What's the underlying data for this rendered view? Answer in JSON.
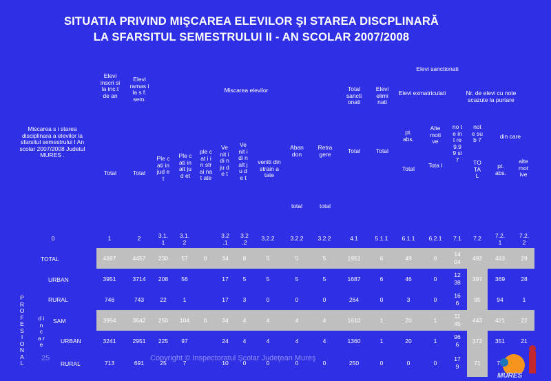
{
  "title_line1": "SITUATIA PRIVIND MIŞCAREA ELEVILOR ŞI STAREA DISCPLINARĂ",
  "title_line2": "LA SFARSITUL SEMESTRULUI II - AN SCOLAR 2007/2008",
  "headers": {
    "left_desc": "Miscarea s i starea disciplinara a elevilor la sfarsitul semestrului I An scolar 2007/2008 Judetul MURES .",
    "elevi_inscrisi": "Elevi inscri si la inc.t de an",
    "elevi_ramasi": "Elevi ramas i la s f. sem.",
    "miscarea": "Miscarea elevilor",
    "elevi_sanctionati": "Elevi sanctionati",
    "total_sanctionati": "Total sancti onati",
    "elevi_eliminati": "Elevi elimi nati",
    "elevi_exmatriculati": "Elevi exmatriculati",
    "nr_elevi_note": "Nr. de elevi cu note scazute la purtare",
    "total": "Total",
    "plecati_judet": "Ple cati in jud et",
    "plecati_alt_judet": "Ple cati in alt jud et",
    "plecati_strainatate": "ple cat i in str ai nat ate",
    "veniti_judet": "Ve nit i di n ju de t",
    "veniti_alt_judet": "Ve nit i di n alt ju de t",
    "veniti_strainatate": "veniti din strain a tate",
    "abandon": "Aban don",
    "retragere": "Retra gere",
    "total_lower": "total",
    "pt_abs": "pt. abs.",
    "alte_motive": "Alte moti ve",
    "note_intre": "no te int re 9.9 9 si 7",
    "note_sub7": "not e sub 7",
    "din_care": "din care",
    "total_cap": "TO TA L",
    "alte_motive2": "alte mot ive",
    "tota_l": "Tota l"
  },
  "codes": [
    "0",
    "1",
    "2",
    "3.1.1",
    "3.1.2",
    "",
    "3.2.1",
    "3.2.2",
    "3.2.2",
    "3.2.2",
    "3.2.2",
    "4.1",
    "5.1.1",
    "6.1.1",
    "6.2.1",
    "7.1",
    "7.2",
    "7.2.1",
    "7.2.2"
  ],
  "codes_display": [
    "0",
    "1",
    "2",
    "3.1.\n1",
    "3.1.\n2",
    "",
    "3.2\n.1",
    "3.2\n.2",
    "3.2.2",
    "3.2.2",
    "3.2.2",
    "4.1",
    "5.1.1",
    "6.1.1",
    "6.2.1",
    "7.1",
    "7.2",
    "7.2.\n1",
    "7.2.\n2"
  ],
  "side_labels": {
    "profesional": "P R O F E S I O N A L",
    "din_care": "d i n  c a r e"
  },
  "rows": [
    {
      "label": "TOTAL",
      "values": [
        "4697",
        "4457",
        "230",
        "57",
        "0",
        "34",
        "8",
        "5",
        "5",
        "5",
        "1951",
        "6",
        "49",
        "0",
        "14\n04",
        "492",
        "463",
        "29"
      ]
    },
    {
      "label": "URBAN",
      "values": [
        "3951",
        "3714",
        "208",
        "56",
        "",
        "17",
        "5",
        "5",
        "5",
        "5",
        "1687",
        "6",
        "46",
        "0",
        "12\n38",
        "397",
        "369",
        "28"
      ]
    },
    {
      "label": "RURAL",
      "values": [
        "746",
        "743",
        "22",
        "1",
        "",
        "17",
        "3",
        "0",
        "0",
        "0",
        "264",
        "0",
        "3",
        "0",
        "16\n6",
        "95",
        "94",
        "1"
      ]
    },
    {
      "label": "SAM",
      "values": [
        "3954",
        "3642",
        "250",
        "104",
        "0",
        "34",
        "4",
        "4",
        "4",
        "4",
        "1610",
        "1",
        "20",
        "1",
        "11\n45",
        "443",
        "421",
        "22"
      ]
    },
    {
      "label": "URBAN",
      "values": [
        "3241",
        "2951",
        "225",
        "97",
        "",
        "24",
        "4",
        "4",
        "4",
        "4",
        "1360",
        "1",
        "20",
        "1",
        "96\n6",
        "372",
        "351",
        "21"
      ]
    },
    {
      "label": "RURAL",
      "values": [
        "713",
        "691",
        "25",
        "7",
        "",
        "10",
        "0",
        "0",
        "0",
        "0",
        "250",
        "0",
        "0",
        "0",
        "17\n9",
        "71",
        "70",
        ""
      ]
    }
  ],
  "footer": "Copyright © Inspectoratul Şcolar Judeţean Mureş",
  "page_number": "25",
  "colors": {
    "background": "#2f2fe6",
    "grey": "#bfbfbf"
  }
}
